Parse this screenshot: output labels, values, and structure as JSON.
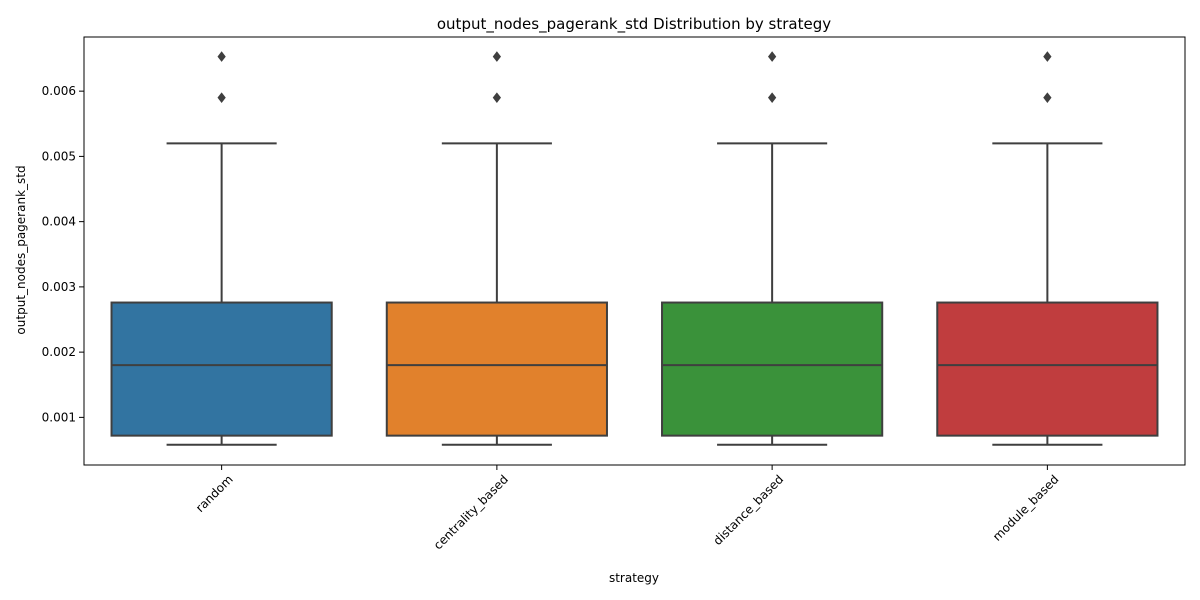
{
  "chart_data": {
    "type": "box",
    "title": "output_nodes_pagerank_std Distribution by strategy",
    "xlabel": "strategy",
    "ylabel": "output_nodes_pagerank_std",
    "ylim": [
      0.00027,
      0.00683
    ],
    "yticks": [
      0.001,
      0.002,
      0.003,
      0.004,
      0.005,
      0.006
    ],
    "ytick_labels": [
      "0.001",
      "0.002",
      "0.003",
      "0.004",
      "0.005",
      "0.006"
    ],
    "grid": false,
    "legend": "none",
    "categories": [
      "random",
      "centrality_based",
      "distance_based",
      "module_based"
    ],
    "colors": [
      "#3274a1",
      "#e1812c",
      "#3a923a",
      "#c03d3e"
    ],
    "edge_color": "#3f3f3f",
    "boxes": [
      {
        "whislo": 0.00058,
        "q1": 0.00072,
        "med": 0.0018,
        "q3": 0.00276,
        "whishi": 0.0052,
        "fliers": [
          0.0059,
          0.00653
        ]
      },
      {
        "whislo": 0.00058,
        "q1": 0.00072,
        "med": 0.0018,
        "q3": 0.00276,
        "whishi": 0.0052,
        "fliers": [
          0.0059,
          0.00653
        ]
      },
      {
        "whislo": 0.00058,
        "q1": 0.00072,
        "med": 0.0018,
        "q3": 0.00276,
        "whishi": 0.0052,
        "fliers": [
          0.0059,
          0.00653
        ]
      },
      {
        "whislo": 0.00058,
        "q1": 0.00072,
        "med": 0.0018,
        "q3": 0.00276,
        "whishi": 0.0052,
        "fliers": [
          0.0059,
          0.00653
        ]
      }
    ]
  }
}
